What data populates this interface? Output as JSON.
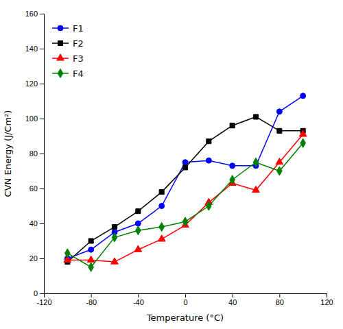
{
  "chart_data": {
    "type": "line",
    "x_label": "Temperature (°C)",
    "y_label": "CVN Energy (J/Cm²)",
    "x": [
      -100,
      -80,
      -60,
      -40,
      -20,
      0,
      20,
      40,
      60,
      80,
      100
    ],
    "series": [
      {
        "name": "F1",
        "color": "#0000FF",
        "marker": "circle",
        "values": [
          20,
          25,
          35,
          40,
          50,
          75,
          76,
          73,
          73,
          104,
          113
        ]
      },
      {
        "name": "F2",
        "color": "#000000",
        "marker": "square",
        "values": [
          18,
          30,
          38,
          47,
          58,
          72,
          87,
          96,
          101,
          93,
          93
        ]
      },
      {
        "name": "F3",
        "color": "#FF0000",
        "marker": "triangle",
        "values": [
          19,
          19,
          18,
          25,
          31,
          39,
          52,
          63,
          59,
          75,
          91
        ]
      },
      {
        "name": "F4",
        "color": "#008000",
        "marker": "diamond",
        "values": [
          23,
          15,
          32,
          36,
          38,
          41,
          50,
          65,
          75,
          70,
          86
        ]
      }
    ],
    "xlim": [
      -120,
      120
    ],
    "ylim": [
      0,
      160
    ],
    "xticks": [
      -120,
      -80,
      -40,
      0,
      40,
      80,
      120
    ],
    "yticks": [
      0,
      20,
      40,
      60,
      80,
      100,
      120,
      140,
      160
    ],
    "grid": false,
    "legend": "top-left"
  }
}
